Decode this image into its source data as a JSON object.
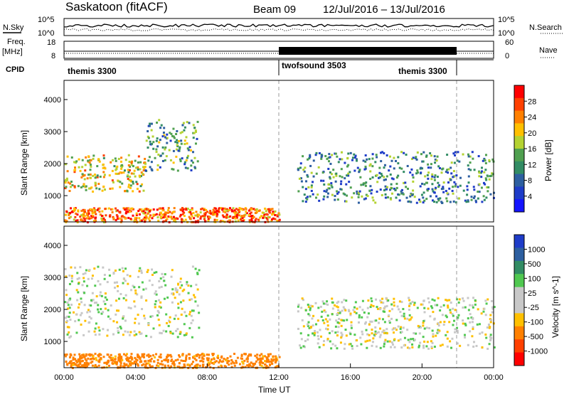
{
  "header": {
    "station": "Saskatoon (fitACF)",
    "beam": "Beam 09",
    "date_range": "12/Jul/2016 – 13/Jul/2016"
  },
  "noise_panel": {
    "left_label": "N.Sky",
    "right_label": "N.Search",
    "ticks": [
      "10^5",
      "10^0"
    ],
    "right_ticks": [
      "10^5",
      "10^0"
    ]
  },
  "freq_panel": {
    "label_line1": "Freq.",
    "label_line2": "[MHz]",
    "ticks": [
      "18",
      "8"
    ],
    "right_label": "Nave",
    "right_ticks": [
      "60",
      "0"
    ]
  },
  "cpid_panel": {
    "label": "CPID",
    "segments": [
      {
        "name": "themis 3300",
        "start_hour": 0,
        "end_hour": 12
      },
      {
        "name": "twofsound 3503",
        "start_hour": 12,
        "end_hour": 22
      },
      {
        "name": "themis 3300",
        "start_hour": 22,
        "end_hour": 24
      }
    ]
  },
  "power_panel": {
    "ylabel": "Slant Range [km]",
    "yticks": [
      "4000",
      "3000",
      "2000",
      "1000"
    ],
    "colorbar_label": "Power [dB]",
    "colorbar_ticks": [
      "28",
      "24",
      "20",
      "16",
      "12",
      "8",
      "4"
    ],
    "colorbar_colors": [
      "#ff0000",
      "#ff4000",
      "#ff8000",
      "#ffc000",
      "#b4d232",
      "#50a050",
      "#328c64",
      "#2d5fa0",
      "#1e3cc8",
      "#1414ff"
    ]
  },
  "velocity_panel": {
    "ylabel": "Slant Range [km]",
    "yticks": [
      "4000",
      "3000",
      "2000",
      "1000"
    ],
    "colorbar_label": "Velocity [m s^-1]",
    "colorbar_ticks": [
      "1000",
      "500",
      "100",
      "25",
      "-25",
      "-100",
      "-500",
      "-1000"
    ],
    "colorbar_colors": [
      "#1e3cc8",
      "#2d5fa0",
      "#328c64",
      "#50c850",
      "#c8c8c8",
      "#c8c8c8",
      "#ffc000",
      "#ff8000",
      "#ff4000",
      "#ff0000"
    ]
  },
  "xaxis": {
    "ticks": [
      "00:00",
      "04:00",
      "08:00",
      "12:00",
      "16:00",
      "20:00",
      "00:00"
    ],
    "label": "Time UT"
  },
  "chart_data": [
    {
      "type": "heatmap",
      "title": "Saskatoon (fitACF) Beam 09 12/Jul/2016 – 13/Jul/2016",
      "xlabel": "Time UT",
      "ylabel": "Slant Range [km]",
      "xlim": [
        0,
        24
      ],
      "ylim": [
        180,
        4600
      ],
      "zlabel": "Power [dB]",
      "zlim": [
        0,
        30
      ],
      "bands": [
        {
          "t0": 0.0,
          "t1": 4.5,
          "r0": 1150,
          "r1": 2300,
          "value": 18
        },
        {
          "t0": 4.5,
          "t1": 7.5,
          "r0": 1800,
          "r1": 3400,
          "value": 12
        },
        {
          "t0": 0.0,
          "t1": 12.0,
          "r0": 200,
          "r1": 650,
          "value": 24
        },
        {
          "t0": 13.0,
          "t1": 24.0,
          "r0": 800,
          "r1": 2400,
          "value": 10
        }
      ]
    },
    {
      "type": "heatmap",
      "xlabel": "Time UT",
      "ylabel": "Slant Range [km]",
      "xlim": [
        0,
        24
      ],
      "ylim": [
        180,
        4600
      ],
      "zlabel": "Velocity [m s^-1]",
      "zlim": [
        -1000,
        1000
      ],
      "bands": [
        {
          "t0": 0.0,
          "t1": 7.5,
          "r0": 1150,
          "r1": 3400,
          "value": 0
        },
        {
          "t0": 0.0,
          "t1": 12.0,
          "r0": 200,
          "r1": 650,
          "value": -150
        },
        {
          "t0": 13.0,
          "t1": 24.0,
          "r0": 800,
          "r1": 2400,
          "value": 0
        }
      ]
    }
  ]
}
